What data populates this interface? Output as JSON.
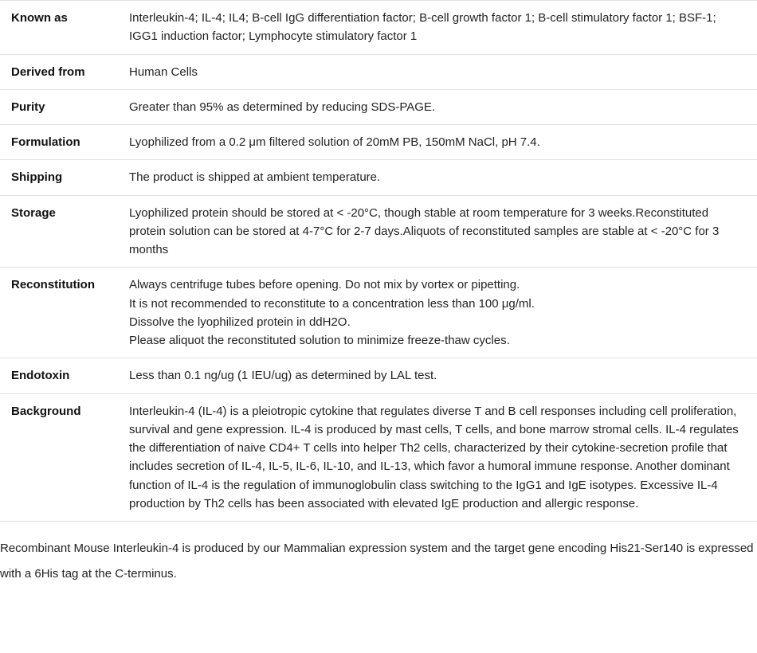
{
  "rows": [
    {
      "label": "Known as",
      "value": "Interleukin-4; IL-4; IL4; B-cell IgG differentiation factor; B-cell growth factor 1; B-cell stimulatory factor 1; BSF-1; IGG1 induction factor; Lymphocyte stimulatory factor 1"
    },
    {
      "label": "Derived from",
      "value": "Human Cells"
    },
    {
      "label": "Purity",
      "value": "Greater than 95% as determined by reducing SDS-PAGE."
    },
    {
      "label": "Formulation",
      "value": "Lyophilized from a 0.2 μm filtered solution of 20mM PB, 150mM NaCl, pH 7.4."
    },
    {
      "label": "Shipping",
      "value": "The product is shipped at ambient temperature."
    },
    {
      "label": "Storage",
      "value": "Lyophilized protein should be stored at < -20°C, though stable at room temperature for 3 weeks.Reconstituted protein solution can be stored at 4-7°C for 2-7 days.Aliquots of reconstituted samples are stable at < -20°C for 3 months"
    },
    {
      "label": "Reconstitution",
      "value": "Always centrifuge tubes before opening. Do not mix by vortex or pipetting.\nIt is not recommended to reconstitute to a concentration less than 100 μg/ml.\nDissolve the lyophilized protein in ddH2O.\nPlease aliquot the reconstituted solution to minimize freeze-thaw cycles."
    },
    {
      "label": "Endotoxin",
      "value": "Less than 0.1 ng/ug (1 IEU/ug) as determined by LAL test."
    },
    {
      "label": "Background",
      "value": "Interleukin-4 (IL-4) is a pleiotropic cytokine that regulates diverse T and B cell responses including cell proliferation, survival and gene expression. IL-4 is produced by mast cells, T cells, and bone marrow stromal cells. IL-4 regulates the differentiation of naive CD4+ T cells into helper Th2 cells, characterized by their cytokine-secretion profile that includes secretion of IL-4, IL-5, IL-6, IL-10, and IL-13, which favor a humoral immune response. Another dominant function of IL-4 is the regulation of immunoglobulin class switching to the IgG1 and IgE isotypes. Excessive IL-4 production by Th2 cells has been associated with elevated IgE production and allergic response."
    }
  ],
  "footnote": "Recombinant Mouse Interleukin-4 is produced by our Mammalian expression system and the target gene encoding His21-Ser140 is expressed with a 6His tag at the C-terminus."
}
